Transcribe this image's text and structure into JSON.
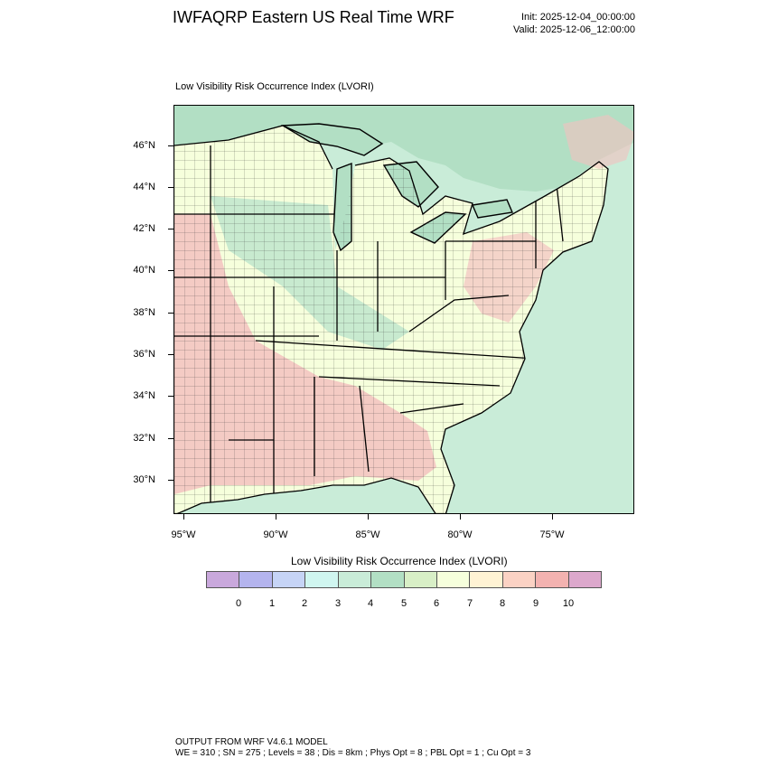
{
  "header": {
    "title": "IWFAQRP Eastern US Real Time WRF",
    "init": "Init: 2025-12-04_00:00:00",
    "valid": "Valid: 2025-12-06_12:00:00"
  },
  "map": {
    "subtitle": "Low Visibility Risk Occurrence Index   (LVORI)",
    "lat_labels": [
      "46°N",
      "44°N",
      "42°N",
      "40°N",
      "38°N",
      "36°N",
      "34°N",
      "32°N",
      "30°N"
    ],
    "lon_labels": [
      "95°W",
      "90°W",
      "85°W",
      "80°W",
      "75°W"
    ],
    "colors": {
      "ocean": "#c9ecd8",
      "lakes": "#b2dfc4",
      "land_low": "#f6ffdc",
      "land_high": "#f3c2c0",
      "land_mid": "#bfe6cc"
    }
  },
  "legend": {
    "title": "Low Visibility Risk Occurrence Index  (LVORI)",
    "labels": [
      "0",
      "1",
      "2",
      "3",
      "4",
      "5",
      "6",
      "7",
      "8",
      "9",
      "10"
    ],
    "colors": [
      "#c9a8dc",
      "#b4b4ee",
      "#c6d4f6",
      "#d0f6f0",
      "#c9ecd8",
      "#b2dfc4",
      "#d8efc6",
      "#f6ffdc",
      "#fff3d4",
      "#fbd2c4",
      "#f3b2b0",
      "#dca8cc"
    ]
  },
  "footer": {
    "line1": "OUTPUT FROM WRF V4.6.1 MODEL",
    "line2": "WE = 310 ; SN = 275 ; Levels = 38 ; Dis = 8km ; Phys Opt = 8 ; PBL Opt = 1 ; Cu Opt = 3"
  }
}
